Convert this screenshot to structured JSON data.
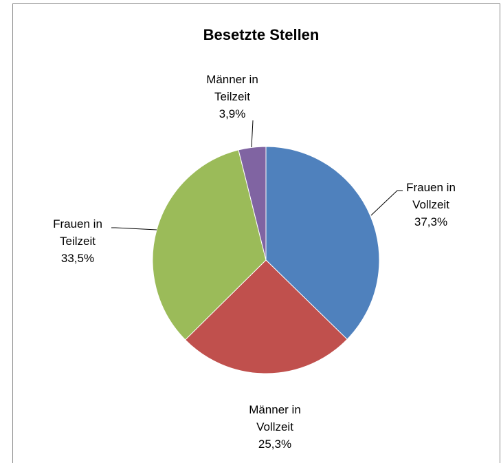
{
  "chart_data": {
    "type": "pie",
    "title": "Besetzte Stellen",
    "categories": [
      "Frauen in Vollzeit",
      "Männer in Vollzeit",
      "Frauen in Teilzeit",
      "Männer in Teilzeit"
    ],
    "values": [
      37.3,
      25.3,
      33.5,
      3.9
    ],
    "value_labels": [
      "37,3%",
      "25,3%",
      "33,5%",
      "3,9%"
    ],
    "colors": [
      "#4f81bd",
      "#c0504d",
      "#9bbb59",
      "#8064a2"
    ]
  }
}
